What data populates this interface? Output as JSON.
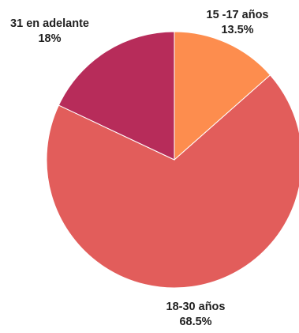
{
  "chart_data": {
    "type": "pie",
    "slices": [
      {
        "label": "15 -17 años",
        "value": 13.5,
        "value_label": "13.5%",
        "color": "#fd8d4e"
      },
      {
        "label": "18-30 años",
        "value": 68.5,
        "value_label": "68.5%",
        "color": "#e25d5b"
      },
      {
        "label": "31 en adelante",
        "value": 18,
        "value_label": "18%",
        "color": "#b72c5a"
      }
    ],
    "start": "12 o'clock",
    "direction": "clockwise",
    "legend": "none",
    "labels": "outside"
  }
}
